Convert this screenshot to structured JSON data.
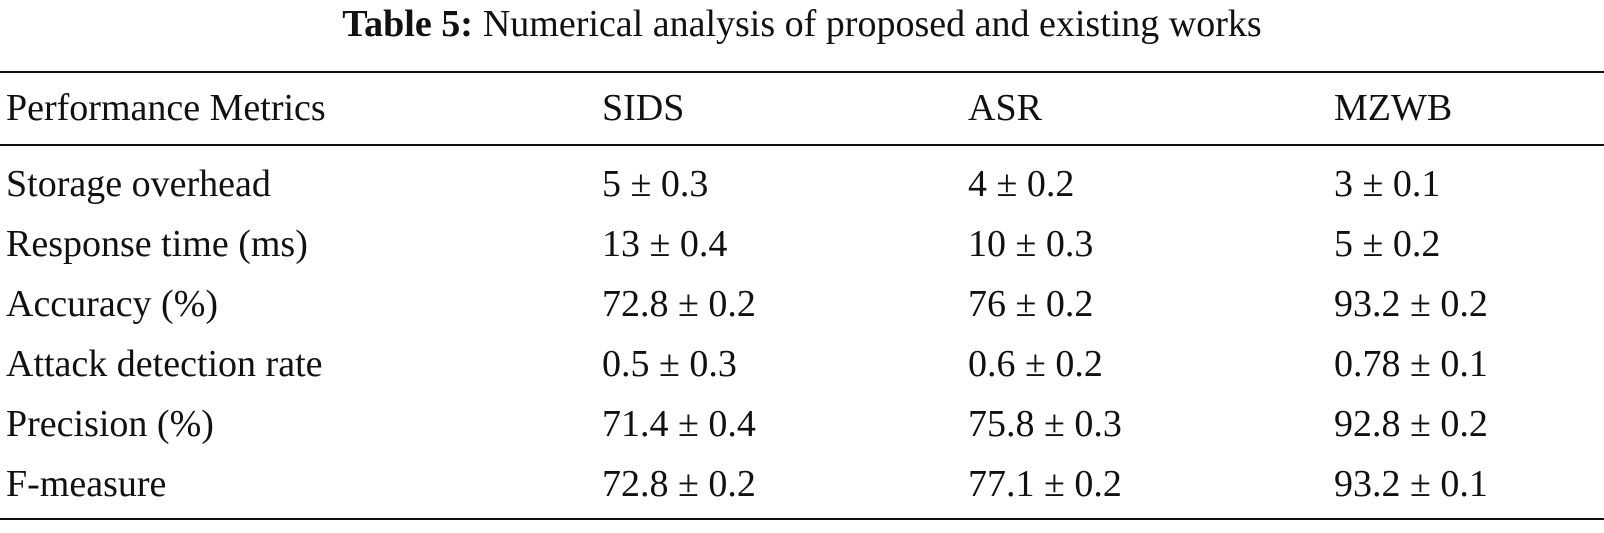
{
  "caption": {
    "label": "Table 5:",
    "text": "Numerical analysis of proposed and existing works"
  },
  "table": {
    "headers": [
      "Performance Metrics",
      "SIDS",
      "ASR",
      "MZWB"
    ],
    "rows": [
      [
        "Storage overhead",
        "5 ± 0.3",
        "4 ± 0.2",
        "3 ± 0.1"
      ],
      [
        "Response time (ms)",
        "13 ± 0.4",
        "10 ± 0.3",
        "5 ± 0.2"
      ],
      [
        "Accuracy (%)",
        "72.8 ± 0.2",
        "76 ± 0.2",
        "93.2 ± 0.2"
      ],
      [
        "Attack detection rate",
        "0.5 ± 0.3",
        "0.6 ± 0.2",
        "0.78 ± 0.1"
      ],
      [
        "Precision (%)",
        "71.4 ± 0.4",
        "75.8 ± 0.3",
        "92.8 ± 0.2"
      ],
      [
        "F-measure",
        "72.8 ± 0.2",
        "77.1 ± 0.2",
        "93.2 ± 0.1"
      ]
    ]
  }
}
